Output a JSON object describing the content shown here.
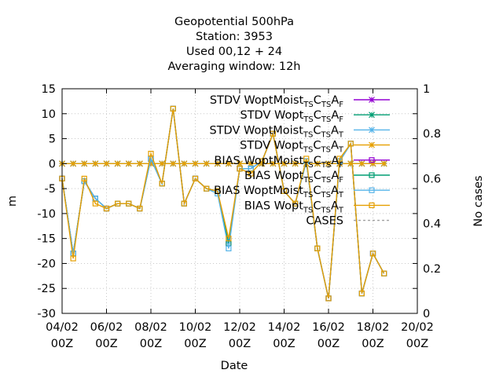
{
  "chart_data": {
    "type": "line",
    "title_lines": [
      "Geopotential 500hPa",
      "Station:     3953",
      "Used  00,12  + 24",
      "Averaging window: 12h"
    ],
    "xlabel": "Date",
    "ylabel": "m",
    "y2label": "No cases",
    "ylim": [
      -30,
      15
    ],
    "yticks": [
      "15",
      "10",
      "5",
      "0",
      "-5",
      "-10",
      "-15",
      "-20",
      "-25",
      "-30"
    ],
    "y2lim": [
      0,
      1
    ],
    "y2ticks": [
      "1",
      "0.8",
      "0.6",
      "0.4",
      "0.2",
      "0"
    ],
    "xlim_day": [
      4,
      20
    ],
    "xticks": [
      {
        "day": 4,
        "l1": "04/02",
        "l2": "00Z"
      },
      {
        "day": 6,
        "l1": "06/02",
        "l2": "00Z"
      },
      {
        "day": 8,
        "l1": "08/02",
        "l2": "00Z"
      },
      {
        "day": 10,
        "l1": "10/02",
        "l2": "00Z"
      },
      {
        "day": 12,
        "l1": "12/02",
        "l2": "00Z"
      },
      {
        "day": 14,
        "l1": "14/02",
        "l2": "00Z"
      },
      {
        "day": 16,
        "l1": "16/02",
        "l2": "00Z"
      },
      {
        "day": 18,
        "l1": "18/02",
        "l2": "00Z"
      },
      {
        "day": 20,
        "l1": "20/02",
        "l2": "00Z"
      }
    ],
    "x_day": [
      4.0,
      4.5,
      5.0,
      5.5,
      6.0,
      6.5,
      7.0,
      7.5,
      8.0,
      8.5,
      9.0,
      9.5,
      10.0,
      10.5,
      11.0,
      11.5,
      12.0,
      12.5,
      13.0,
      13.5,
      14.0,
      14.5,
      15.0,
      15.5,
      16.0,
      16.5,
      17.0,
      17.5,
      18.0,
      18.5
    ],
    "series": [
      {
        "kind": "STDV",
        "main": "STDV WoptMoist",
        "subs": [
          "TS",
          "TS",
          "F"
        ],
        "color": "#9400d3",
        "marker": "star",
        "values": [
          0,
          0,
          0,
          0,
          0,
          0,
          0,
          0,
          0,
          0,
          0,
          0,
          0,
          0,
          0,
          0,
          0,
          0,
          0,
          0,
          0,
          0,
          0,
          0,
          0,
          0,
          0,
          0,
          0,
          0
        ]
      },
      {
        "kind": "STDV",
        "main": "STDV Wopt",
        "subs": [
          "TS",
          "TS",
          "F"
        ],
        "color": "#009e73",
        "marker": "star",
        "values": [
          0,
          0,
          0,
          0,
          0,
          0,
          0,
          0,
          0,
          0,
          0,
          0,
          0,
          0,
          0,
          0,
          0,
          0,
          0,
          0,
          0,
          0,
          0,
          0,
          0,
          0,
          0,
          0,
          0,
          0
        ]
      },
      {
        "kind": "STDV",
        "main": "STDV WoptMoist",
        "subs": [
          "TS",
          "TS",
          "T"
        ],
        "color": "#56b4e9",
        "marker": "star",
        "values": [
          0,
          0,
          0,
          0,
          0,
          0,
          0,
          0,
          0,
          0,
          0,
          0,
          0,
          0,
          0,
          0,
          0,
          0,
          0,
          0,
          0,
          0,
          0,
          0,
          0,
          0,
          0,
          0,
          0,
          0
        ]
      },
      {
        "kind": "STDV",
        "main": "STDV Wopt",
        "subs": [
          "TS",
          "TS",
          "T"
        ],
        "color": "#e69f00",
        "marker": "star",
        "values": [
          0,
          0,
          0,
          0,
          0,
          0,
          0,
          0,
          0,
          0,
          0,
          0,
          0,
          0,
          0,
          0,
          0,
          0,
          0,
          0,
          0,
          0,
          0,
          0,
          0,
          0,
          0,
          0,
          0,
          0
        ]
      },
      {
        "kind": "BIAS",
        "main": "BIAS WoptMoist",
        "subs": [
          "TS",
          "TS",
          "F"
        ],
        "color": "#9400d3",
        "marker": "square",
        "values": [
          -3,
          -18,
          -3.5,
          -7,
          -9,
          -8,
          -8,
          -9,
          1,
          -4,
          11,
          -8,
          -3,
          -5,
          -5.5,
          -16,
          -1,
          -1,
          0.5,
          6,
          -5.5,
          -8,
          0.5,
          -17,
          -27,
          0.5,
          4,
          -26,
          -18,
          -22
        ]
      },
      {
        "kind": "BIAS",
        "main": "BIAS Wopt",
        "subs": [
          "TS",
          "TS",
          "F"
        ],
        "color": "#009e73",
        "marker": "square",
        "values": [
          -3,
          -18,
          -3.5,
          -7,
          -9,
          -8,
          -8,
          -9,
          1,
          -4,
          11,
          -8,
          -3,
          -5,
          -5.5,
          -16,
          -1,
          -1,
          0.5,
          6,
          -5.5,
          -8,
          0.5,
          -17,
          -27,
          0.5,
          4,
          -26,
          -18,
          -22
        ]
      },
      {
        "kind": "BIAS",
        "main": "BIAS WoptMoist",
        "subs": [
          "TS",
          "TS",
          "T"
        ],
        "color": "#56b4e9",
        "marker": "square",
        "values": [
          -3,
          -18,
          -3.5,
          -7,
          -9,
          -8,
          -8,
          -9,
          1,
          -4,
          11,
          -8,
          -3,
          -5,
          -6,
          -17,
          -1,
          -1,
          0.5,
          6,
          -5.5,
          -8,
          0.5,
          -17,
          -27,
          0.5,
          4,
          -26,
          -18,
          -22
        ]
      },
      {
        "kind": "BIAS",
        "main": "BIAS Wopt",
        "subs": [
          "TS",
          "TS",
          "T"
        ],
        "color": "#e69f00",
        "marker": "square",
        "values": [
          -3,
          -19,
          -3,
          -8,
          -9,
          -8,
          -8,
          -9,
          2,
          -4,
          11,
          -8,
          -3,
          -5,
          -5.5,
          -15,
          -1,
          -2,
          0.5,
          6,
          -5.5,
          -8,
          1,
          -17,
          -27,
          1,
          4,
          -26,
          -18,
          -22
        ]
      },
      {
        "kind": "CASES",
        "main": "CASES",
        "subs": [],
        "color": "#a0a0a0",
        "marker": "none",
        "dashed": true,
        "values": []
      }
    ]
  }
}
